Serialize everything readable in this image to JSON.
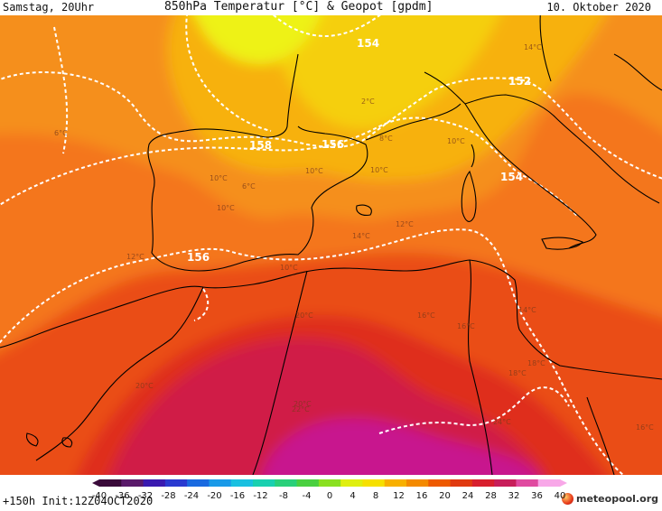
{
  "header": {
    "left": "Samstag, 20Uhr",
    "center": "850hPa Temperatur [°C] & Geopot [gpdm]",
    "right": "10. Oktober 2020"
  },
  "footer": {
    "run": "+150h  Init:12Z04OCT2020",
    "logo": "meteopool.org"
  },
  "colorbar": {
    "ticks": [
      "-40",
      "-36",
      "-32",
      "-28",
      "-24",
      "-20",
      "-16",
      "-12",
      "-8",
      "-4",
      "0",
      "4",
      "8",
      "12",
      "16",
      "20",
      "24",
      "28",
      "32",
      "36",
      "40"
    ],
    "colors": [
      "#3a0a3a",
      "#5a1a6a",
      "#3a1ab0",
      "#2a3ad0",
      "#1a6ae0",
      "#1a9ae8",
      "#1ac0e0",
      "#1ad0b0",
      "#2ad07a",
      "#4ad040",
      "#8ae020",
      "#dfef10",
      "#f6e000",
      "#f8b000",
      "#f48a00",
      "#ee5a00",
      "#e03a10",
      "#d81f2e",
      "#c81e5a",
      "#e04aa0",
      "#f8a8e8"
    ]
  },
  "geopot_labels": [
    "154",
    "152",
    "158",
    "156",
    "154",
    "156"
  ],
  "temp_labels": [
    "6°C",
    "10°C",
    "10°C",
    "2°C",
    "6°C",
    "8°C",
    "10°C",
    "10°C",
    "10°C",
    "12°C",
    "12°C",
    "14°C",
    "16°C",
    "10°C",
    "14°C",
    "20°C",
    "18°C",
    "16°C",
    "18°C",
    "20°C",
    "20°C",
    "22°C",
    "24°C",
    "16°C",
    "14°C"
  ],
  "colors": {
    "coast": "#000000",
    "isohypse": "#ffffff"
  }
}
